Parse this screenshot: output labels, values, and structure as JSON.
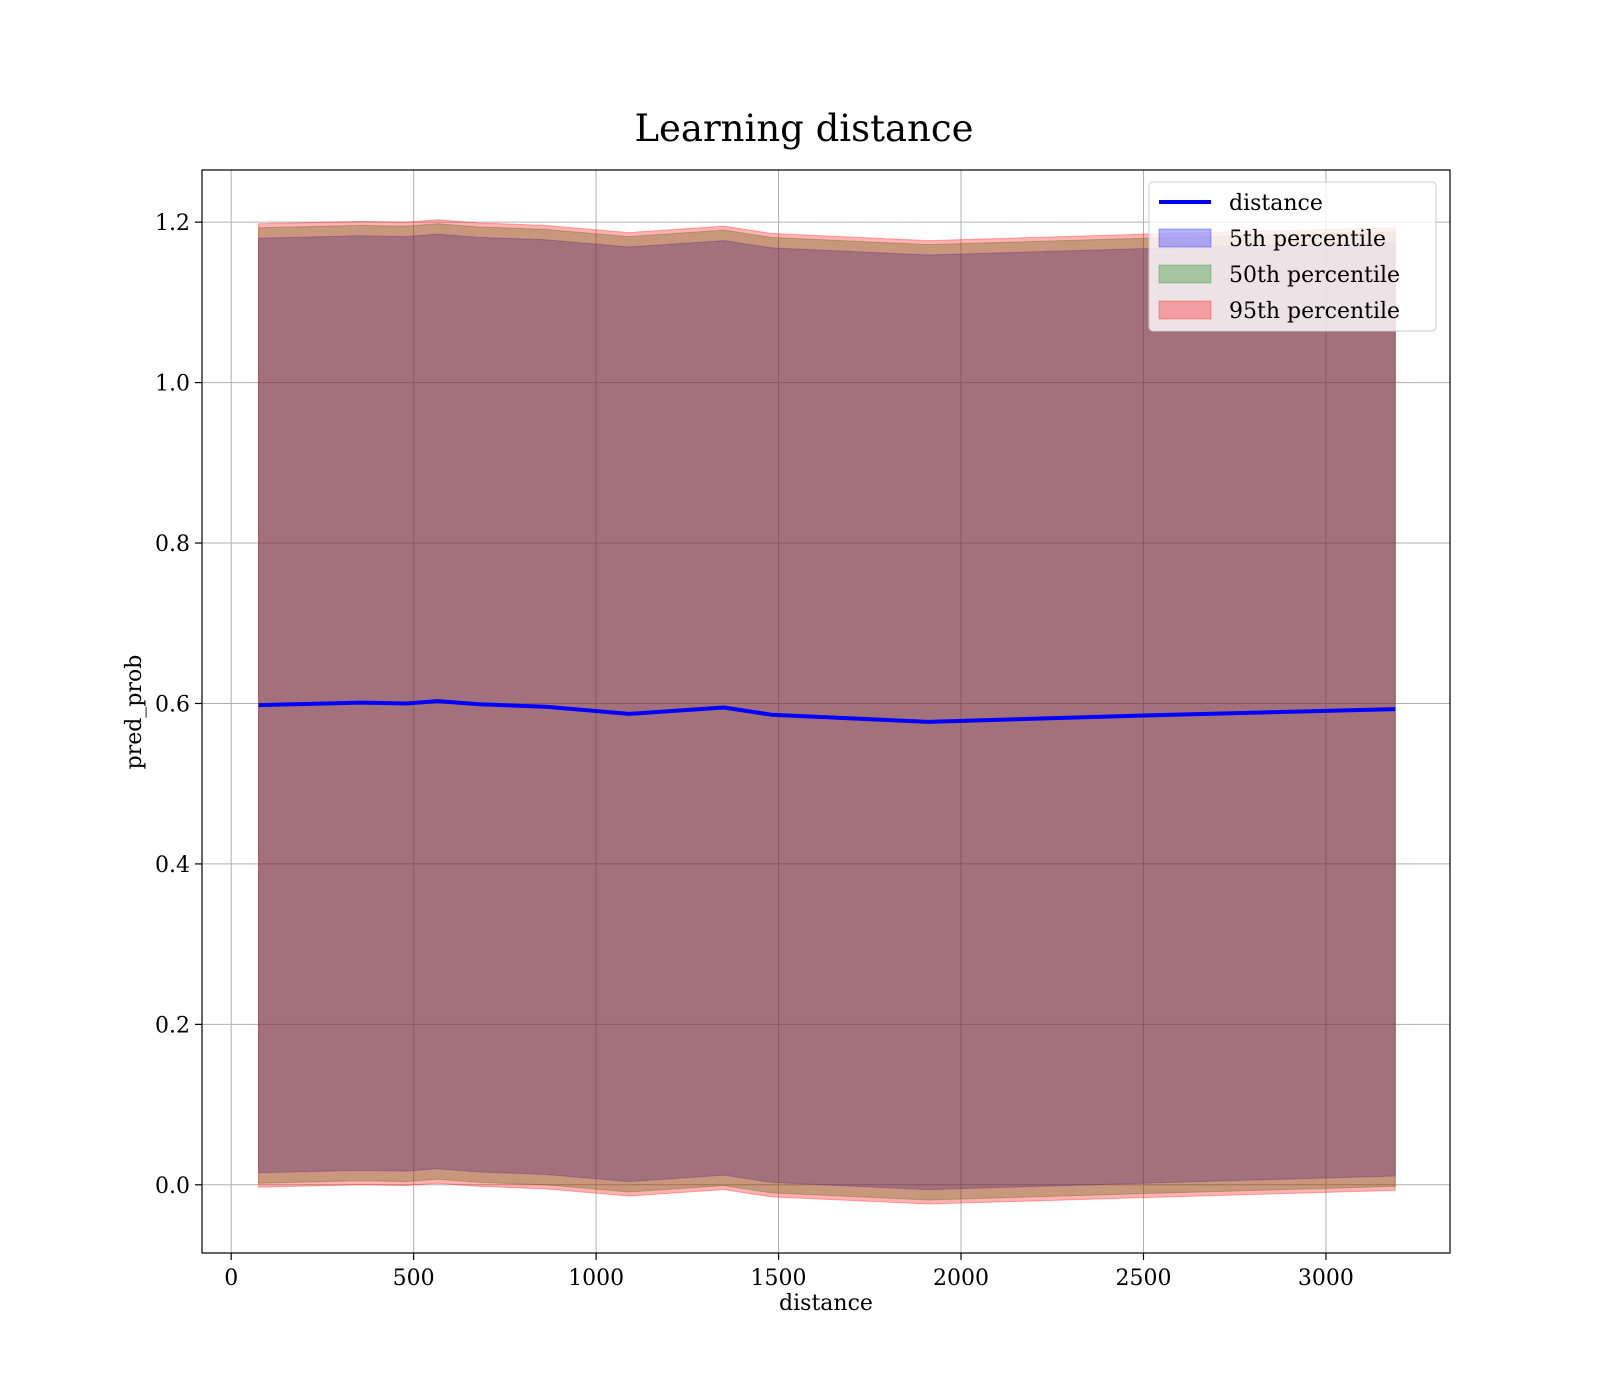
{
  "chart_data": {
    "type": "area",
    "title": "Learning distance",
    "xlabel": "distance",
    "ylabel": "pred_prob",
    "xlim": [
      -80,
      3340
    ],
    "ylim": [
      -0.085,
      1.265
    ],
    "xticks": [
      0,
      500,
      1000,
      1500,
      2000,
      2500,
      3000
    ],
    "yticks": [
      0.0,
      0.2,
      0.4,
      0.6,
      0.8,
      1.0,
      1.2
    ],
    "xtick_labels": [
      "0",
      "500",
      "1000",
      "1500",
      "2000",
      "2500",
      "3000"
    ],
    "ytick_labels": [
      "0.0",
      "0.2",
      "0.4",
      "0.6",
      "0.8",
      "1.0",
      "1.2"
    ],
    "grid": true,
    "legend_position": "top-right",
    "x": [
      75,
      355,
      480,
      565,
      680,
      860,
      1090,
      1350,
      1480,
      1910,
      2500,
      3190
    ],
    "series": [
      {
        "name": "distance",
        "kind": "line",
        "color": "#0000ff",
        "values": [
          0.598,
          0.601,
          0.6,
          0.603,
          0.599,
          0.596,
          0.587,
          0.595,
          0.586,
          0.577,
          0.585,
          0.593
        ]
      },
      {
        "name": "5th percentile",
        "kind": "band",
        "color": "#0000ff",
        "lower": [
          0.015,
          0.018,
          0.017,
          0.02,
          0.016,
          0.013,
          0.004,
          0.012,
          0.003,
          -0.006,
          0.002,
          0.011
        ],
        "upper": [
          1.18,
          1.183,
          1.182,
          1.185,
          1.181,
          1.178,
          1.169,
          1.177,
          1.168,
          1.159,
          1.167,
          1.175
        ]
      },
      {
        "name": "50th percentile",
        "kind": "band",
        "color": "#008000",
        "lower": [
          0.002,
          0.005,
          0.004,
          0.007,
          0.003,
          0.0,
          -0.009,
          -0.001,
          -0.01,
          -0.019,
          -0.011,
          -0.002
        ],
        "upper": [
          1.193,
          1.196,
          1.195,
          1.198,
          1.194,
          1.191,
          1.182,
          1.19,
          1.181,
          1.172,
          1.18,
          1.188
        ]
      },
      {
        "name": "95th percentile",
        "kind": "band",
        "color": "#ff0000",
        "lower": [
          -0.003,
          0.0,
          -0.001,
          0.002,
          -0.002,
          -0.005,
          -0.014,
          -0.006,
          -0.015,
          -0.024,
          -0.016,
          -0.007
        ],
        "upper": [
          1.198,
          1.201,
          1.2,
          1.203,
          1.199,
          1.196,
          1.187,
          1.195,
          1.186,
          1.177,
          1.185,
          1.193
        ]
      }
    ]
  }
}
